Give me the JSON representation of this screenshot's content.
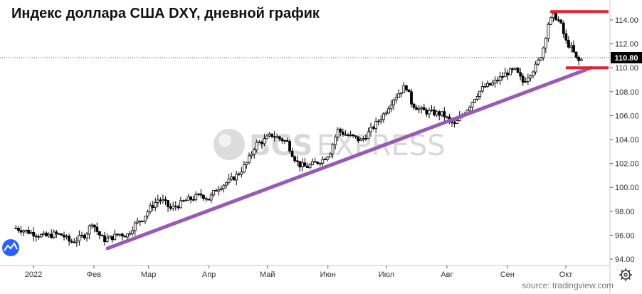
{
  "title": "Индекс доллара США DXY, дневной график",
  "source": "source: tradingview.com",
  "watermark": {
    "bold": "BCS",
    "light": "EXPRESS"
  },
  "current_price_label": "110.80",
  "icons": {
    "logo": "tradingview-logo-icon",
    "settings": "gear-icon"
  },
  "colors": {
    "trendline": "#9b59b6",
    "levels": "#e0232b",
    "candle_up": "#ffffff",
    "candle_down": "#000000",
    "price_badge": "#000000"
  },
  "chart_data": {
    "type": "candlestick",
    "title": "Индекс доллара США DXY, дневной график",
    "x_ticks": [
      {
        "label": "2022",
        "t": 0
      },
      {
        "label": "Фев",
        "t": 31
      },
      {
        "label": "Мар",
        "t": 59
      },
      {
        "label": "Апр",
        "t": 90
      },
      {
        "label": "Май",
        "t": 120
      },
      {
        "label": "Июн",
        "t": 151
      },
      {
        "label": "Июл",
        "t": 181
      },
      {
        "label": "Авг",
        "t": 212
      },
      {
        "label": "Сен",
        "t": 243
      },
      {
        "label": "Окт",
        "t": 273
      }
    ],
    "y_ticks": [
      "114.00",
      "112.00",
      "110.00",
      "108.00",
      "106.00",
      "104.00",
      "102.00",
      "100.00",
      "98.00",
      "96.00",
      "94.00"
    ],
    "ylim": [
      93.5,
      115.5
    ],
    "current_price": 110.8,
    "horizontal_levels": [
      114.7,
      110.0
    ],
    "trendline": [
      {
        "t": 38,
        "y": 94.9
      },
      {
        "t": 286,
        "y": 110.0
      }
    ],
    "series": [
      {
        "t": -9,
        "y": 96.6
      },
      {
        "t": -5,
        "y": 96.4
      },
      {
        "t": -1,
        "y": 96.2
      },
      {
        "t": 3,
        "y": 96.0
      },
      {
        "t": 7,
        "y": 95.9
      },
      {
        "t": 11,
        "y": 96.1
      },
      {
        "t": 15,
        "y": 96.0
      },
      {
        "t": 19,
        "y": 95.4
      },
      {
        "t": 23,
        "y": 95.7
      },
      {
        "t": 27,
        "y": 96.1
      },
      {
        "t": 30,
        "y": 97.1
      },
      {
        "t": 33,
        "y": 96.2
      },
      {
        "t": 36,
        "y": 95.6
      },
      {
        "t": 40,
        "y": 95.8
      },
      {
        "t": 44,
        "y": 96.1
      },
      {
        "t": 48,
        "y": 96.0
      },
      {
        "t": 52,
        "y": 96.9
      },
      {
        "t": 56,
        "y": 97.4
      },
      {
        "t": 60,
        "y": 98.3
      },
      {
        "t": 64,
        "y": 99.0
      },
      {
        "t": 67,
        "y": 98.8
      },
      {
        "t": 70,
        "y": 98.2
      },
      {
        "t": 74,
        "y": 98.5
      },
      {
        "t": 78,
        "y": 98.9
      },
      {
        "t": 82,
        "y": 99.1
      },
      {
        "t": 86,
        "y": 99.4
      },
      {
        "t": 90,
        "y": 99.0
      },
      {
        "t": 94,
        "y": 99.9
      },
      {
        "t": 98,
        "y": 100.3
      },
      {
        "t": 102,
        "y": 100.7
      },
      {
        "t": 106,
        "y": 101.3
      },
      {
        "t": 110,
        "y": 102.2
      },
      {
        "t": 114,
        "y": 103.6
      },
      {
        "t": 118,
        "y": 103.9
      },
      {
        "t": 122,
        "y": 104.4
      },
      {
        "t": 126,
        "y": 104.1
      },
      {
        "t": 130,
        "y": 103.8
      },
      {
        "t": 133,
        "y": 102.7
      },
      {
        "t": 136,
        "y": 101.9
      },
      {
        "t": 140,
        "y": 101.7
      },
      {
        "t": 144,
        "y": 102.0
      },
      {
        "t": 148,
        "y": 102.3
      },
      {
        "t": 152,
        "y": 102.9
      },
      {
        "t": 156,
        "y": 104.8
      },
      {
        "t": 160,
        "y": 104.4
      },
      {
        "t": 164,
        "y": 104.2
      },
      {
        "t": 168,
        "y": 103.9
      },
      {
        "t": 172,
        "y": 104.6
      },
      {
        "t": 176,
        "y": 105.4
      },
      {
        "t": 180,
        "y": 106.2
      },
      {
        "t": 184,
        "y": 107.3
      },
      {
        "t": 188,
        "y": 108.0
      },
      {
        "t": 191,
        "y": 108.5
      },
      {
        "t": 194,
        "y": 107.0
      },
      {
        "t": 198,
        "y": 106.5
      },
      {
        "t": 202,
        "y": 106.3
      },
      {
        "t": 206,
        "y": 106.2
      },
      {
        "t": 210,
        "y": 106.1
      },
      {
        "t": 213,
        "y": 105.6
      },
      {
        "t": 216,
        "y": 105.2
      },
      {
        "t": 219,
        "y": 105.9
      },
      {
        "t": 223,
        "y": 106.7
      },
      {
        "t": 227,
        "y": 107.7
      },
      {
        "t": 231,
        "y": 108.4
      },
      {
        "t": 235,
        "y": 108.6
      },
      {
        "t": 239,
        "y": 109.1
      },
      {
        "t": 243,
        "y": 109.6
      },
      {
        "t": 247,
        "y": 109.8
      },
      {
        "t": 251,
        "y": 108.8
      },
      {
        "t": 255,
        "y": 109.6
      },
      {
        "t": 258,
        "y": 110.2
      },
      {
        "t": 261,
        "y": 111.4
      },
      {
        "t": 264,
        "y": 113.7
      },
      {
        "t": 267,
        "y": 114.4
      },
      {
        "t": 270,
        "y": 113.8
      },
      {
        "t": 273,
        "y": 112.2
      },
      {
        "t": 276,
        "y": 111.6
      },
      {
        "t": 279,
        "y": 110.5
      },
      {
        "t": 282,
        "y": 110.8
      }
    ]
  }
}
